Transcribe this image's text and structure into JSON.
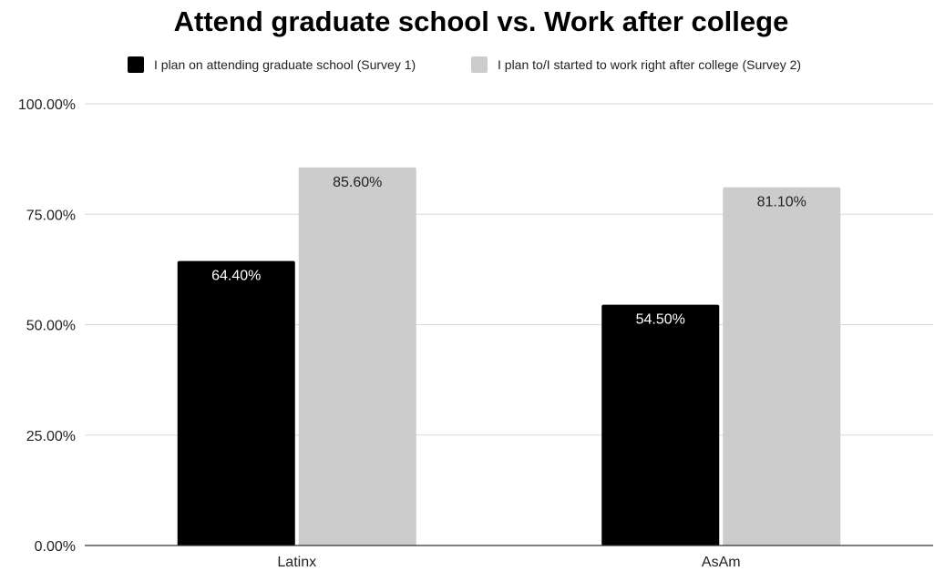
{
  "chart_data": {
    "type": "bar",
    "title": "Attend graduate school vs. Work after college",
    "xlabel": "",
    "ylabel": "",
    "categories": [
      "Latinx",
      "AsAm"
    ],
    "series": [
      {
        "name": "I plan on attending graduate school (Survey 1)",
        "color": "#000000",
        "label_color": "#ffffff",
        "values": [
          64.4,
          54.5
        ],
        "data_labels": [
          "64.40%",
          "54.50%"
        ]
      },
      {
        "name": "I plan to/I started to work right after college (Survey 2)",
        "color": "#cccccc",
        "label_color": "#222222",
        "values": [
          85.6,
          81.1
        ],
        "data_labels": [
          "85.60%",
          "81.10%"
        ]
      }
    ],
    "ylim": [
      0,
      100
    ],
    "yticks": [
      0,
      25,
      50,
      75,
      100
    ],
    "ytick_labels": [
      "0.00%",
      "25.00%",
      "50.00%",
      "75.00%",
      "100.00%"
    ],
    "grid": true,
    "legend_position": "top"
  }
}
